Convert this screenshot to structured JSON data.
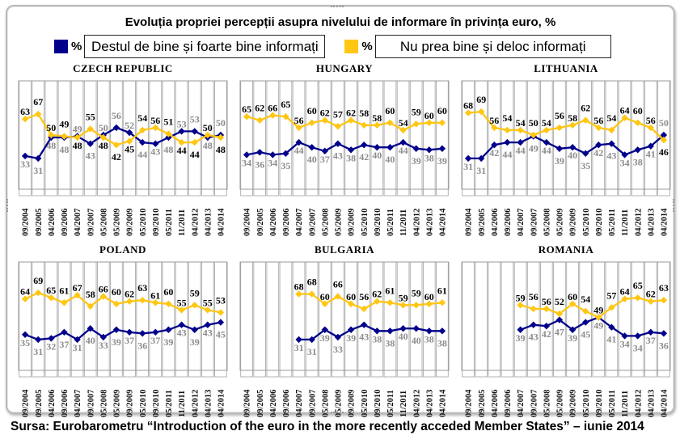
{
  "title": "Evoluția propriei percepții asupra nivelului de informare în privința euro, %",
  "legend": {
    "items": [
      {
        "pct": "%",
        "label": "Destul de bine și foarte bine informați",
        "color": "#00008B"
      },
      {
        "pct": "%",
        "label": "Nu prea bine și deloc informați",
        "color": "#FFC613"
      }
    ]
  },
  "source": "Sursa: Eurobarometru “Introduction of the euro in the more recently acceded Member States” – iunie 2014",
  "colors": {
    "blue_series": "#00008B",
    "yellow_series": "#FFC613",
    "grid": "#ABABAB",
    "yellow_series_label": "#000000",
    "blue_series_label": "#8C8C8C"
  },
  "chart_data": [
    {
      "type": "line",
      "title": "CZECH  REPUBLIC",
      "categories": [
        "09/2004",
        "09/2005",
        "04/2006",
        "09/2006",
        "04/2007",
        "09/2007",
        "05/2008",
        "05/2009",
        "09/2009",
        "05/2010",
        "09/2010",
        "05/2011",
        "11/2011",
        "04/2012",
        "04/2013",
        "04/2014"
      ],
      "ylim": [
        0,
        100
      ],
      "series": [
        {
          "name": "Destul de bine și foarte bine informați",
          "color": "#00008B",
          "values": [
            33,
            31,
            48,
            48,
            49,
            43,
            50,
            56,
            52,
            44,
            43,
            48,
            53,
            53,
            48,
            50
          ]
        },
        {
          "name": "Nu prea bine și deloc informați",
          "color": "#FFC613",
          "values": [
            63,
            67,
            50,
            49,
            48,
            55,
            48,
            42,
            45,
            54,
            56,
            51,
            44,
            44,
            50,
            48
          ]
        }
      ]
    },
    {
      "type": "line",
      "title": "HUNGARY",
      "categories": [
        "09/2004",
        "09/2005",
        "04/2006",
        "09/2006",
        "04/2007",
        "09/2007",
        "05/2008",
        "05/2009",
        "09/2009",
        "05/2010",
        "09/2010",
        "05/2011",
        "11/2011",
        "04/2012",
        "04/2013",
        "04/2014"
      ],
      "ylim": [
        0,
        100
      ],
      "series": [
        {
          "name": "Destul de bine și foarte bine informați",
          "color": "#00008B",
          "values": [
            34,
            36,
            34,
            35,
            44,
            40,
            37,
            43,
            38,
            42,
            40,
            40,
            44,
            39,
            38,
            39
          ]
        },
        {
          "name": "Nu prea bine și deloc informați",
          "color": "#FFC613",
          "values": [
            65,
            62,
            66,
            65,
            56,
            60,
            62,
            57,
            62,
            58,
            58,
            60,
            54,
            59,
            60,
            60
          ]
        }
      ]
    },
    {
      "type": "line",
      "title": "LITHUANIA",
      "categories": [
        "09/2004",
        "09/2005",
        "04/2006",
        "09/2006",
        "04/2007",
        "09/2007",
        "05/2008",
        "05/2009",
        "09/2009",
        "05/2010",
        "09/2010",
        "05/2011",
        "11/2011",
        "04/2012",
        "04/2013",
        "04/2014"
      ],
      "ylim": [
        0,
        100
      ],
      "series": [
        {
          "name": "Destul de bine și foarte bine informați",
          "color": "#00008B",
          "values": [
            31,
            31,
            42,
            44,
            44,
            49,
            44,
            39,
            40,
            35,
            42,
            43,
            34,
            38,
            41,
            50
          ]
        },
        {
          "name": "Nu prea bine și deloc informați",
          "color": "#FFC613",
          "values": [
            68,
            69,
            56,
            54,
            54,
            50,
            54,
            56,
            58,
            62,
            56,
            54,
            64,
            60,
            56,
            46
          ]
        }
      ]
    },
    {
      "type": "line",
      "title": "POLAND",
      "categories": [
        "09/2004",
        "09/2005",
        "04/2006",
        "09/2006",
        "04/2007",
        "09/2007",
        "05/2008",
        "05/2009",
        "09/2009",
        "05/2010",
        "09/2010",
        "05/2011",
        "11/2011",
        "04/2012",
        "04/2013",
        "04/2014"
      ],
      "ylim": [
        0,
        100
      ],
      "series": [
        {
          "name": "Destul de bine și foarte bine informați",
          "color": "#00008B",
          "values": [
            35,
            31,
            32,
            37,
            31,
            40,
            33,
            39,
            37,
            36,
            37,
            39,
            43,
            39,
            43,
            45
          ]
        },
        {
          "name": "Nu prea bine și deloc informați",
          "color": "#FFC613",
          "values": [
            64,
            69,
            65,
            61,
            67,
            58,
            66,
            60,
            62,
            63,
            61,
            60,
            55,
            59,
            55,
            53
          ]
        }
      ]
    },
    {
      "type": "line",
      "title": "BULGARIA",
      "categories": [
        "09/2004",
        "09/2005",
        "04/2006",
        "09/2006",
        "04/2007",
        "09/2007",
        "05/2008",
        "05/2009",
        "09/2009",
        "05/2010",
        "09/2010",
        "05/2011",
        "11/2011",
        "04/2012",
        "04/2013",
        "04/2014"
      ],
      "ylim": [
        0,
        100
      ],
      "series": [
        {
          "name": "Destul de bine și foarte bine informați",
          "color": "#00008B",
          "values": [
            null,
            null,
            null,
            null,
            31,
            31,
            39,
            33,
            39,
            43,
            38,
            38,
            40,
            40,
            38,
            38
          ]
        },
        {
          "name": "Nu prea bine și deloc informați",
          "color": "#FFC613",
          "values": [
            null,
            null,
            null,
            null,
            68,
            68,
            60,
            66,
            60,
            56,
            62,
            61,
            59,
            59,
            60,
            61
          ]
        }
      ]
    },
    {
      "type": "line",
      "title": "ROMANIA",
      "categories": [
        "09/2004",
        "09/2005",
        "04/2006",
        "09/2006",
        "04/2007",
        "09/2007",
        "05/2008",
        "05/2009",
        "09/2009",
        "05/2010",
        "09/2010",
        "05/2011",
        "11/2011",
        "04/2012",
        "04/2013",
        "04/2014"
      ],
      "ylim": [
        0,
        100
      ],
      "series": [
        {
          "name": "Destul de bine și foarte bine informați",
          "color": "#00008B",
          "values": [
            null,
            null,
            null,
            null,
            39,
            43,
            42,
            47,
            39,
            45,
            49,
            41,
            34,
            34,
            37,
            36
          ]
        },
        {
          "name": "Nu prea bine și deloc informați",
          "color": "#FFC613",
          "values": [
            null,
            null,
            null,
            null,
            59,
            56,
            56,
            52,
            60,
            54,
            49,
            57,
            64,
            65,
            62,
            63
          ]
        }
      ]
    }
  ]
}
